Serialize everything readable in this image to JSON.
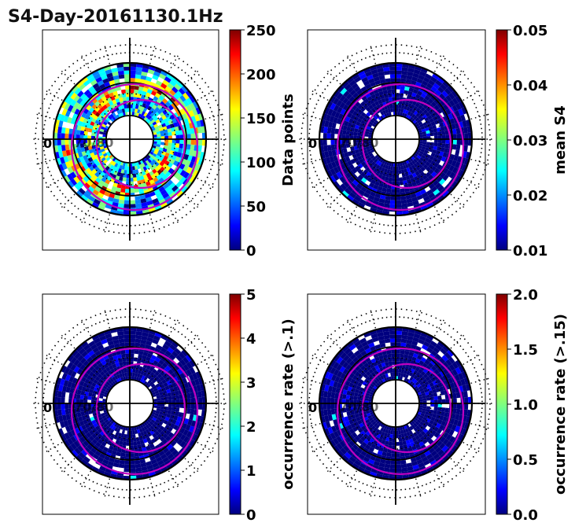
{
  "figure": {
    "title": "S4-Day-20161130.1Hz",
    "colormap": [
      "#00007f",
      "#0000ff",
      "#007fff",
      "#00ffff",
      "#7fff7f",
      "#ffff00",
      "#ff7f00",
      "#ff0000",
      "#7f0000"
    ]
  },
  "chart_data": [
    {
      "type": "heatmap",
      "projection": "polar",
      "panel": "top-left",
      "colorbar_label": "Data points",
      "colorbar_range": [
        0,
        250
      ],
      "colorbar_ticks": [
        "0",
        "50",
        "100",
        "150",
        "200",
        "250"
      ],
      "value_pattern": "mixed",
      "annotation": "0",
      "annotation_faint": "70/80"
    },
    {
      "type": "heatmap",
      "projection": "polar",
      "panel": "top-right",
      "colorbar_label": "mean S4",
      "colorbar_range": [
        0.01,
        0.05
      ],
      "colorbar_ticks": [
        "0.01",
        "0.02",
        "0.03",
        "0.04",
        "0.05"
      ],
      "value_pattern": "low",
      "annotation": "0",
      "annotation_faint": "70/80"
    },
    {
      "type": "heatmap",
      "projection": "polar",
      "panel": "bottom-left",
      "colorbar_label": "occurrence rate (>.1)",
      "colorbar_range": [
        0,
        5
      ],
      "colorbar_ticks": [
        "0",
        "1",
        "2",
        "3",
        "4",
        "5"
      ],
      "value_pattern": "low",
      "annotation": "0",
      "annotation_faint": "70/80"
    },
    {
      "type": "heatmap",
      "projection": "polar",
      "panel": "bottom-right",
      "colorbar_label": "occurrence rate (>.15)",
      "colorbar_range": [
        0.0,
        2.0
      ],
      "colorbar_ticks": [
        "0.0",
        "0.5",
        "1.0",
        "1.5",
        "2.0"
      ],
      "value_pattern": "low",
      "annotation": "0",
      "annotation_faint": "70/80"
    }
  ]
}
